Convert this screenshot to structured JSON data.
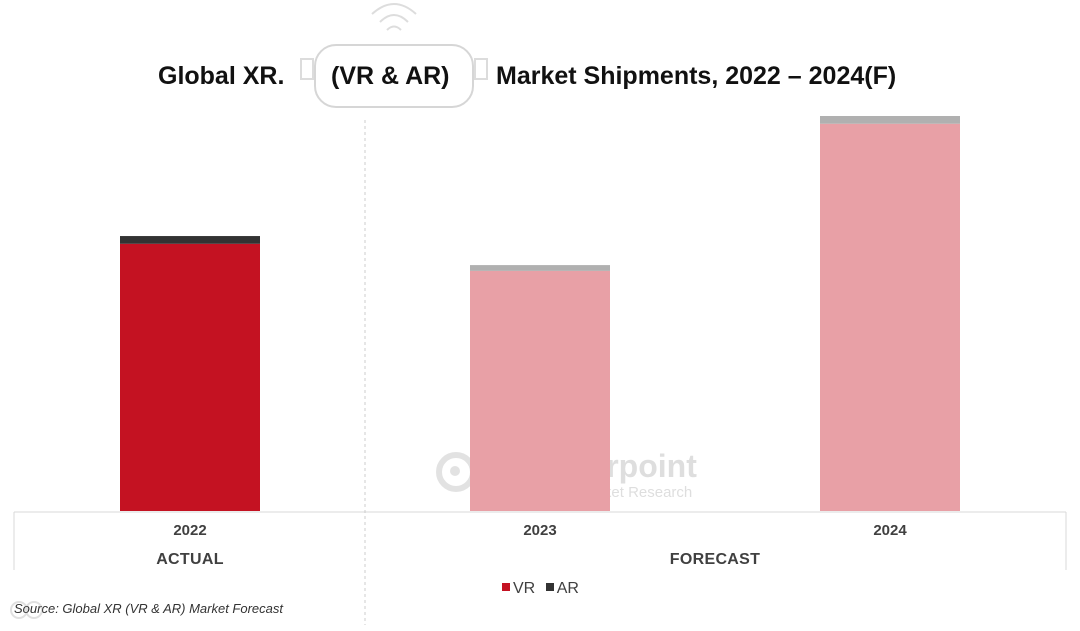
{
  "chart_data": {
    "type": "bar",
    "stacked": true,
    "title": "Global XR. (VR & AR) Market Shipments, 2022 – 2024(F)",
    "title_parts": [
      "Global XR.",
      "(VR & AR)",
      "Market Shipments, 2022 – 2024(F)"
    ],
    "categories": [
      "2022",
      "2023",
      "2024"
    ],
    "sections": [
      {
        "label": "ACTUAL",
        "categories": [
          "2022"
        ]
      },
      {
        "label": "FORECAST",
        "categories": [
          "2023",
          "2024"
        ]
      }
    ],
    "series": [
      {
        "name": "VR",
        "values": [
          69,
          62,
          100
        ]
      },
      {
        "name": "AR",
        "values": [
          2,
          1.5,
          2
        ]
      }
    ],
    "ylim": [
      0,
      102
    ],
    "xlabel": "",
    "ylabel": "",
    "colors": {
      "vr_actual": "#c41222",
      "ar_actual": "#333333",
      "vr_forecast": "#e8a0a6",
      "ar_forecast": "#b0b0b0"
    },
    "legend_position": "bottom-center"
  },
  "legend": {
    "vr": "VR",
    "ar": "AR",
    "vr_color": "#c41222",
    "ar_color": "#333333"
  },
  "source": "Source: Global XR (VR & AR) Market Forecast",
  "watermark": {
    "name": "Counterpoint",
    "tagline": "Technology Market Research"
  }
}
